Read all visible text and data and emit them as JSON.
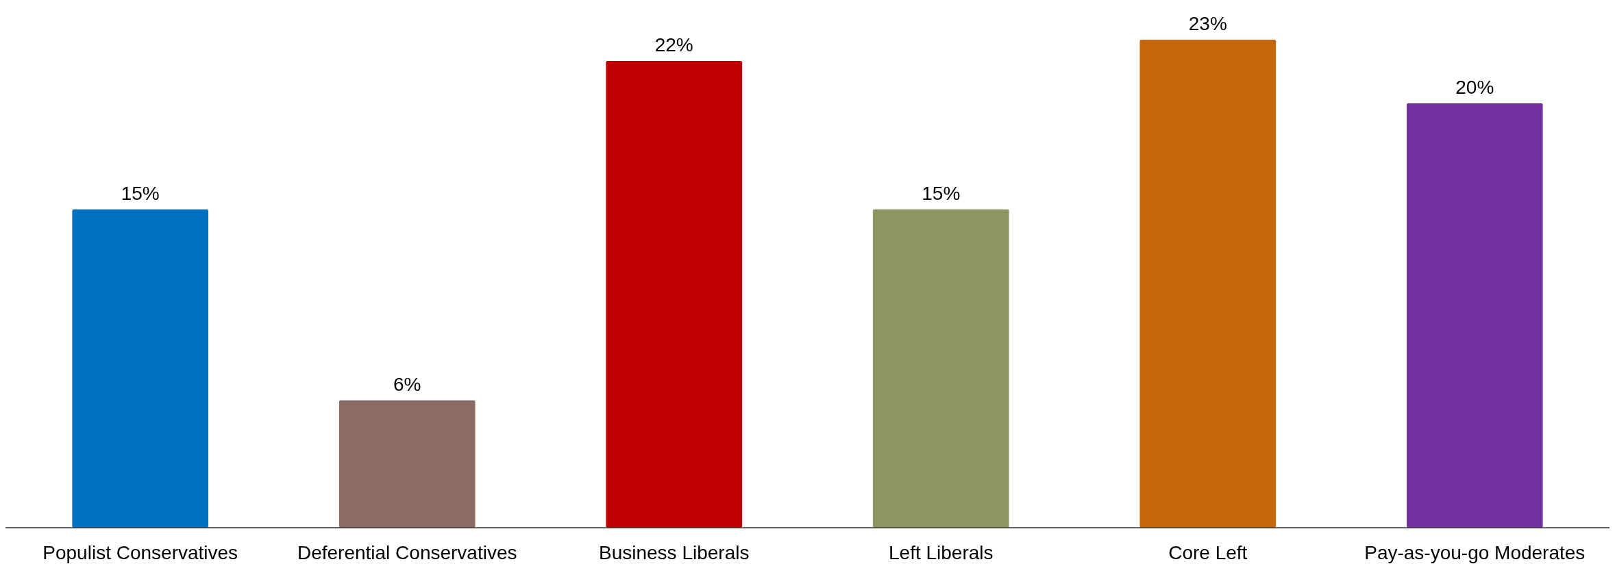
{
  "chart_data": {
    "type": "bar",
    "categories": [
      "Populist Conservatives",
      "Deferential Conservatives",
      "Business Liberals",
      "Left Liberals",
      "Core Left",
      "Pay-as-you-go Moderates"
    ],
    "values": [
      15,
      6,
      22,
      15,
      23,
      20
    ],
    "colors": [
      "#0070c0",
      "#8a6c64",
      "#c00000",
      "#8e9462",
      "#c5670c",
      "#7030a0"
    ],
    "value_labels": [
      "15%",
      "6%",
      "22%",
      "15%",
      "23%",
      "20%"
    ]
  }
}
